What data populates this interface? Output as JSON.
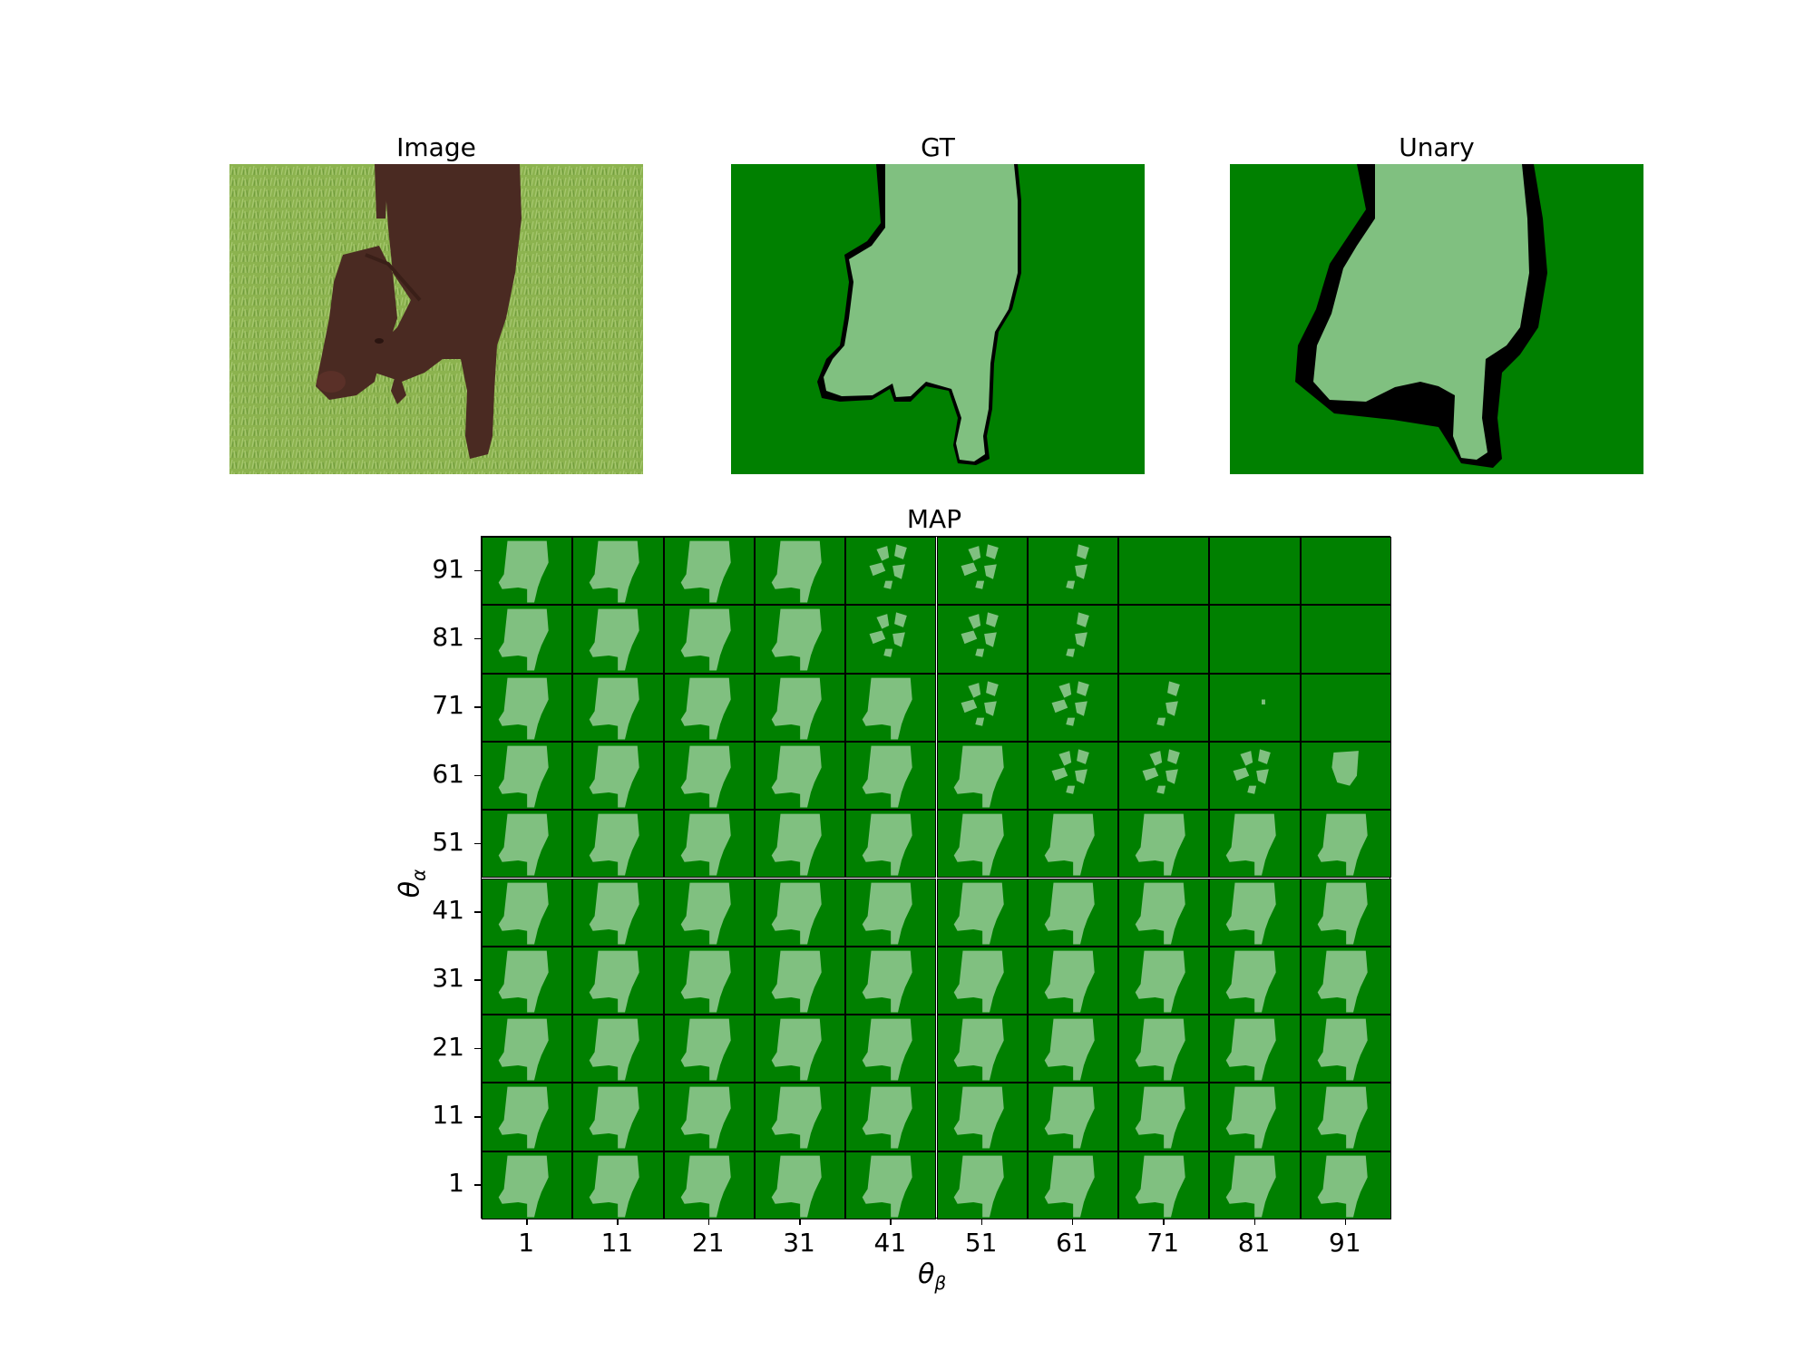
{
  "figure": {
    "panels": [
      {
        "id": "image",
        "title": "Image"
      },
      {
        "id": "gt",
        "title": "GT"
      },
      {
        "id": "unary",
        "title": "Unary"
      }
    ],
    "map_title": "MAP",
    "xlabel_main": "θ",
    "xlabel_sub": "β",
    "ylabel_main": "θ",
    "ylabel_sub": "α",
    "colors": {
      "background_class": "#008000",
      "foreground_class": "#80c080",
      "ignore": "#000000",
      "grass": "#8cb34f",
      "dog": "#4a2a22"
    }
  },
  "chart_data": {
    "type": "heatmap",
    "title": "MAP",
    "x_ticks": [
      "1",
      "11",
      "21",
      "31",
      "41",
      "51",
      "61",
      "71",
      "81",
      "91"
    ],
    "y_ticks": [
      "91",
      "81",
      "71",
      "61",
      "51",
      "41",
      "31",
      "21",
      "11",
      "1"
    ],
    "xlabel": "θβ",
    "ylabel": "θα",
    "cells_state": [
      [
        "full",
        "full",
        "full",
        "full",
        "fragmented",
        "fragmented",
        "sparse",
        "empty",
        "empty",
        "empty"
      ],
      [
        "full",
        "full",
        "full",
        "full",
        "fragmented",
        "fragmented",
        "sparse",
        "empty",
        "empty",
        "empty"
      ],
      [
        "full",
        "full",
        "full",
        "full",
        "full",
        "fragmented",
        "fragmented",
        "sparse",
        "dot",
        "empty"
      ],
      [
        "full",
        "full",
        "full",
        "full",
        "full",
        "full",
        "fragmented",
        "fragmented",
        "fragmented",
        "small"
      ],
      [
        "full",
        "full",
        "full",
        "full",
        "full",
        "full",
        "full",
        "full",
        "full",
        "full"
      ],
      [
        "full",
        "full",
        "full",
        "full",
        "full",
        "full",
        "full",
        "full",
        "full",
        "full"
      ],
      [
        "full",
        "full",
        "full",
        "full",
        "full",
        "full",
        "full",
        "full",
        "full",
        "full"
      ],
      [
        "full",
        "full",
        "full",
        "full",
        "full",
        "full",
        "full",
        "full",
        "full",
        "full"
      ],
      [
        "full",
        "full",
        "full",
        "full",
        "full",
        "full",
        "full",
        "full",
        "full",
        "full"
      ],
      [
        "full",
        "full",
        "full",
        "full",
        "full",
        "full",
        "full",
        "full",
        "full",
        "full"
      ]
    ]
  }
}
